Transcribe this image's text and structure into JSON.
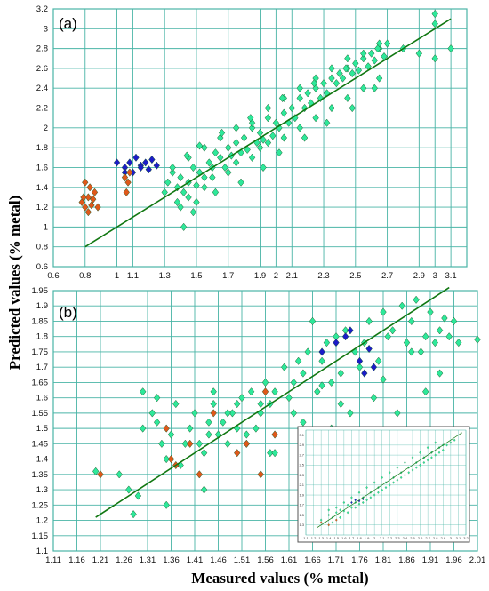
{
  "ylabel": "Predicted values (% metal)",
  "xlabel": "Measured values (% metal)",
  "colors": {
    "grid": "#49b4a6",
    "fit_line": "#117711",
    "calibration": "#2ee89a",
    "validation_blue": "#1c1cc8",
    "outlier_orange": "#e0581a",
    "marker_edge": "#1a5a2a"
  },
  "chart_data": [
    {
      "panel": "(a)",
      "type": "scatter",
      "title": "",
      "xlim": [
        0.6,
        3.2
      ],
      "ylim": [
        0.6,
        3.2
      ],
      "x_ticks": [
        "0.6",
        "0.8",
        "1",
        "1.1",
        "1.3",
        "1.5",
        "1.7",
        "1.9",
        "2",
        "2.1",
        "2.3",
        "2.5",
        "2.7",
        "2.9",
        "3",
        "3.1"
      ],
      "y_ticks": [
        "0.6",
        "0.8",
        "1",
        "1.2",
        "1.4",
        "1.6",
        "1.8",
        "2",
        "2.2",
        "2.4",
        "2.6",
        "2.8",
        "3",
        "3.2"
      ],
      "fit_line": {
        "x": [
          0.8,
          3.1
        ],
        "y": [
          0.8,
          3.1
        ]
      },
      "series": [
        {
          "marker": "diamond",
          "color": "#2ee89a",
          "description": "calibration cloud (~700 points)",
          "x": [
            1.3,
            1.32,
            1.35,
            1.38,
            1.4,
            1.42,
            1.45,
            1.48,
            1.5,
            1.52,
            1.55,
            1.58,
            1.6,
            1.62,
            1.65,
            1.68,
            1.7,
            1.72,
            1.75,
            1.78,
            1.8,
            1.82,
            1.85,
            1.88,
            1.9,
            1.92,
            1.95,
            1.98,
            2.0,
            2.02,
            2.05,
            2.08,
            2.1,
            2.12,
            2.15,
            2.18,
            2.2,
            2.22,
            2.25,
            2.28,
            2.3,
            2.32,
            2.35,
            2.38,
            2.4,
            2.42,
            2.45,
            2.48,
            2.5,
            2.52,
            2.55,
            2.58,
            2.6,
            2.62,
            2.65,
            2.68,
            2.7,
            2.8,
            2.9,
            3.0,
            3.0,
            3.0,
            3.1,
            1.4,
            1.45,
            1.5,
            1.55,
            1.6,
            1.7,
            1.75,
            1.85,
            1.9,
            1.95,
            2.05,
            2.15,
            2.25,
            2.35,
            2.45,
            2.55,
            2.65,
            1.35,
            1.45,
            1.55,
            1.65,
            1.75,
            1.85,
            1.95,
            2.05,
            2.15,
            2.25,
            2.35,
            2.45,
            2.55,
            2.65,
            1.42,
            1.38,
            1.48,
            1.62,
            1.78,
            1.92,
            2.02,
            2.18,
            2.32,
            2.48,
            2.62,
            1.44,
            1.52,
            1.66,
            1.84,
            2.04,
            2.24,
            2.44,
            2.64
          ],
          "y": [
            1.35,
            1.45,
            1.55,
            1.4,
            1.5,
            1.35,
            1.45,
            1.6,
            1.42,
            1.55,
            1.5,
            1.65,
            1.6,
            1.75,
            1.7,
            1.6,
            1.8,
            1.72,
            1.85,
            1.75,
            1.9,
            1.78,
            2.0,
            1.85,
            1.95,
            1.88,
            2.1,
            1.92,
            2.05,
            2.0,
            2.15,
            2.05,
            2.2,
            2.1,
            2.3,
            2.2,
            2.35,
            2.25,
            2.4,
            2.3,
            2.45,
            2.35,
            2.5,
            2.45,
            2.55,
            2.5,
            2.6,
            2.55,
            2.65,
            2.58,
            2.7,
            2.62,
            2.75,
            2.68,
            2.8,
            2.72,
            2.85,
            2.8,
            2.75,
            3.15,
            3.05,
            2.7,
            2.8,
            1.2,
            1.3,
            1.25,
            1.4,
            1.5,
            1.55,
            1.65,
            1.7,
            1.8,
            1.85,
            1.9,
            2.0,
            2.1,
            2.2,
            2.3,
            2.4,
            2.5,
            1.6,
            1.7,
            1.8,
            1.9,
            2.0,
            2.05,
            2.2,
            2.3,
            2.4,
            2.5,
            2.6,
            2.7,
            2.75,
            2.85,
            1.0,
            1.25,
            1.15,
            1.35,
            1.45,
            1.6,
            1.75,
            1.9,
            2.05,
            2.2,
            2.4,
            1.72,
            1.82,
            1.95,
            2.1,
            2.3,
            2.45,
            2.6,
            2.8
          ]
        },
        {
          "marker": "diamond",
          "color": "#1c1cc8",
          "x": [
            1.0,
            1.05,
            1.08,
            1.1,
            1.12,
            1.15,
            1.18,
            1.2,
            1.22,
            1.25,
            1.05,
            1.15
          ],
          "y": [
            1.65,
            1.6,
            1.65,
            1.55,
            1.7,
            1.62,
            1.65,
            1.58,
            1.68,
            1.62,
            1.55,
            1.6
          ]
        },
        {
          "marker": "diamond",
          "color": "#e0581a",
          "x": [
            0.78,
            0.8,
            0.82,
            0.84,
            0.86,
            0.8,
            0.83,
            0.85,
            0.88,
            1.05,
            1.07,
            1.08,
            1.06,
            0.82,
            0.79
          ],
          "y": [
            1.25,
            1.2,
            1.3,
            1.22,
            1.35,
            1.45,
            1.4,
            1.28,
            1.2,
            1.5,
            1.45,
            1.55,
            1.35,
            1.15,
            1.3
          ]
        }
      ]
    },
    {
      "panel": "(b)",
      "type": "scatter",
      "title": "",
      "xlim": [
        1.11,
        2.01
      ],
      "ylim": [
        1.1,
        1.95
      ],
      "x_ticks": [
        "1.11",
        "1.16",
        "1.21",
        "1.26",
        "1.31",
        "1.36",
        "1.41",
        "1.46",
        "1.51",
        "1.56",
        "1.61",
        "1.66",
        "1.71",
        "1.76",
        "1.81",
        "1.86",
        "1.91",
        "1.96",
        "2.01"
      ],
      "y_ticks": [
        "1.1",
        "1.15",
        "1.2",
        "1.25",
        "1.3",
        "1.35",
        "1.4",
        "1.45",
        "1.5",
        "1.55",
        "1.6",
        "1.65",
        "1.7",
        "1.75",
        "1.8",
        "1.85",
        "1.9",
        "1.95"
      ],
      "fit_line": {
        "x": [
          1.2,
          1.95
        ],
        "y": [
          1.21,
          1.96
        ]
      },
      "series": [
        {
          "marker": "diamond",
          "color": "#2ee89a",
          "x": [
            1.2,
            1.25,
            1.27,
            1.29,
            1.3,
            1.32,
            1.33,
            1.34,
            1.35,
            1.36,
            1.38,
            1.4,
            1.41,
            1.42,
            1.43,
            1.44,
            1.45,
            1.46,
            1.47,
            1.48,
            1.49,
            1.5,
            1.51,
            1.52,
            1.53,
            1.54,
            1.55,
            1.56,
            1.57,
            1.58,
            1.6,
            1.62,
            1.63,
            1.64,
            1.65,
            1.66,
            1.67,
            1.68,
            1.69,
            1.7,
            1.71,
            1.72,
            1.73,
            1.75,
            1.77,
            1.78,
            1.8,
            1.81,
            1.82,
            1.83,
            1.85,
            1.86,
            1.87,
            1.88,
            1.89,
            1.9,
            1.91,
            1.92,
            1.93,
            1.94,
            1.95,
            1.96,
            1.97,
            2.01,
            1.3,
            1.33,
            1.37,
            1.39,
            1.45,
            1.48,
            1.52,
            1.55,
            1.57,
            1.61,
            1.64,
            1.68,
            1.72,
            1.76,
            1.79,
            1.84,
            1.87,
            1.9,
            1.93,
            1.35,
            1.28,
            1.43,
            1.58,
            1.74,
            1.81,
            1.44,
            1.5,
            1.62,
            1.7
          ],
          "y": [
            1.36,
            1.35,
            1.3,
            1.28,
            1.5,
            1.55,
            1.6,
            1.45,
            1.4,
            1.48,
            1.38,
            1.5,
            1.55,
            1.45,
            1.42,
            1.52,
            1.58,
            1.48,
            1.52,
            1.45,
            1.55,
            1.58,
            1.6,
            1.48,
            1.62,
            1.5,
            1.55,
            1.65,
            1.58,
            1.62,
            1.7,
            1.65,
            1.72,
            1.68,
            1.75,
            1.85,
            1.62,
            1.72,
            1.78,
            1.65,
            1.8,
            1.68,
            1.82,
            1.75,
            1.78,
            1.85,
            1.72,
            1.88,
            1.8,
            1.82,
            1.9,
            1.78,
            1.85,
            1.92,
            1.75,
            1.8,
            1.88,
            1.78,
            1.82,
            1.86,
            1.8,
            1.85,
            1.78,
            1.79,
            1.62,
            1.52,
            1.58,
            1.45,
            1.62,
            1.55,
            1.45,
            1.58,
            1.42,
            1.6,
            1.52,
            1.64,
            1.58,
            1.7,
            1.6,
            1.55,
            1.75,
            1.62,
            1.68,
            1.25,
            1.22,
            1.3,
            1.42,
            1.55,
            1.66,
            1.48,
            1.5,
            1.55,
            1.5
          ]
        },
        {
          "marker": "diamond",
          "color": "#1c1cc8",
          "x": [
            1.68,
            1.71,
            1.73,
            1.76,
            1.78,
            1.79,
            1.74,
            1.77
          ],
          "y": [
            1.75,
            1.78,
            1.8,
            1.72,
            1.76,
            1.7,
            1.82,
            1.68
          ]
        },
        {
          "marker": "diamond",
          "color": "#e0581a",
          "x": [
            1.21,
            1.35,
            1.36,
            1.37,
            1.4,
            1.42,
            1.45,
            1.5,
            1.52,
            1.55,
            1.56,
            1.58
          ],
          "y": [
            1.35,
            1.5,
            1.4,
            1.38,
            1.45,
            1.35,
            1.55,
            1.42,
            1.45,
            1.35,
            1.62,
            1.48
          ]
        }
      ]
    },
    {
      "panel": "inset",
      "type": "scatter",
      "title": "",
      "xlim": [
        1.1,
        3.2
      ],
      "ylim": [
        1.1,
        3.2
      ],
      "x_ticks": [
        "1.1",
        "1.2",
        "1.3",
        "1.4",
        "1.5",
        "1.6",
        "1.7",
        "1.8",
        "1.9",
        "2",
        "2.1",
        "2.2",
        "2.3",
        "2.4",
        "2.5",
        "2.6",
        "2.7",
        "2.8",
        "2.9",
        "3",
        "3.1",
        "3.2"
      ],
      "y_ticks": [
        "1.3",
        "1.5",
        "1.7",
        "1.9",
        "2.1",
        "2.3",
        "2.5",
        "2.7",
        "2.9",
        "3.1"
      ],
      "fit_line": {
        "x": [
          1.25,
          3.15
        ],
        "y": [
          1.25,
          3.15
        ]
      },
      "series": [
        {
          "marker": "diamond",
          "color": "#2ee89a",
          "x": [
            1.3,
            1.35,
            1.4,
            1.45,
            1.5,
            1.55,
            1.6,
            1.65,
            1.7,
            1.75,
            1.8,
            1.85,
            1.9,
            1.95,
            2.0,
            2.05,
            2.1,
            2.15,
            2.2,
            2.25,
            2.3,
            2.35,
            2.4,
            2.45,
            2.5,
            2.55,
            2.6,
            2.65,
            2.7,
            2.75,
            2.8,
            2.85,
            2.9,
            2.95,
            3.0,
            3.05,
            1.4,
            1.5,
            1.6,
            1.7,
            1.8,
            1.9,
            2.0,
            2.1,
            2.2,
            2.3,
            2.4,
            2.5,
            2.6,
            2.7,
            2.8,
            2.9,
            1.45,
            1.55,
            1.65,
            1.75,
            1.85,
            1.95,
            2.05,
            2.15,
            2.25,
            2.35,
            2.45,
            2.55,
            2.65,
            2.75,
            2.85
          ],
          "y": [
            1.4,
            1.35,
            1.5,
            1.45,
            1.55,
            1.6,
            1.58,
            1.7,
            1.65,
            1.75,
            1.72,
            1.85,
            1.8,
            1.95,
            1.9,
            2.05,
            2.0,
            2.15,
            2.1,
            2.25,
            2.2,
            2.35,
            2.3,
            2.45,
            2.4,
            2.55,
            2.5,
            2.65,
            2.6,
            2.75,
            2.7,
            2.85,
            2.8,
            2.9,
            2.95,
            3.0,
            1.6,
            1.65,
            1.75,
            1.85,
            1.95,
            2.05,
            2.15,
            2.25,
            2.35,
            2.45,
            2.55,
            2.65,
            2.75,
            2.85,
            2.95,
            2.9,
            1.35,
            1.45,
            1.55,
            1.65,
            1.75,
            1.85,
            1.95,
            2.05,
            2.15,
            2.25,
            2.35,
            2.45,
            2.55,
            2.65,
            2.75
          ]
        },
        {
          "marker": "diamond",
          "color": "#1c1cc8",
          "x": [
            1.7,
            1.75,
            1.8,
            1.85
          ],
          "y": [
            1.75,
            1.8,
            1.78,
            1.82
          ]
        },
        {
          "marker": "diamond",
          "color": "#e0581a",
          "x": [
            1.3,
            1.4,
            1.5
          ],
          "y": [
            1.35,
            1.3,
            1.4
          ]
        }
      ]
    }
  ]
}
